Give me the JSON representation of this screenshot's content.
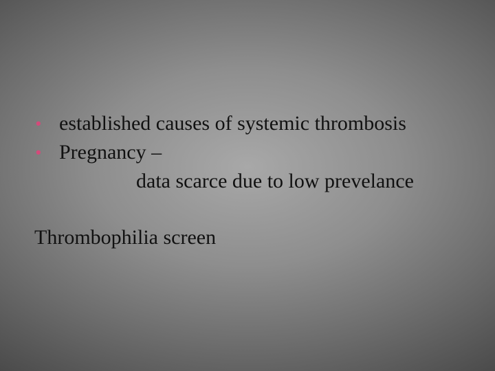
{
  "slide": {
    "background": {
      "type": "radial-gradient",
      "center_color": "#a8a8a8",
      "edge_color": "#1f1f1f"
    },
    "bullet_color": "#d44a7a",
    "text_color": "#111111",
    "font_family": "Georgia serif",
    "body_fontsize_pt": 22,
    "bullets": [
      {
        "text": "established causes of systemic thrombosis",
        "sub": []
      },
      {
        "text": "Pregnancy –",
        "sub": [
          "data scarce due to low prevelance"
        ]
      }
    ],
    "standalone_line": "Thrombophilia screen"
  }
}
